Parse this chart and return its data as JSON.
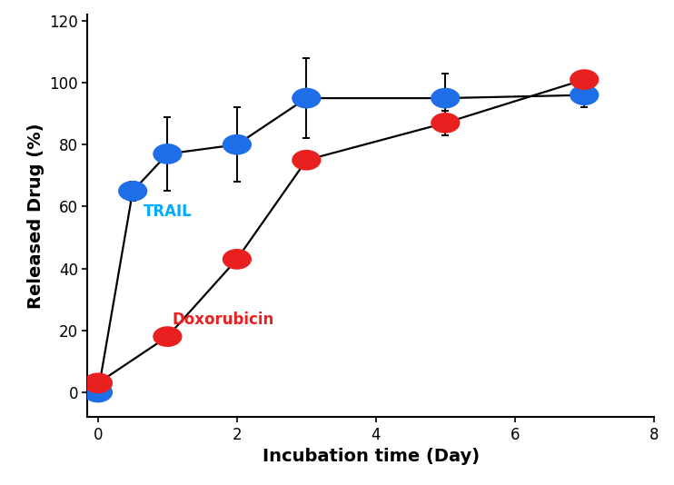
{
  "trail_x": [
    0,
    0.5,
    1,
    2,
    3,
    5,
    7
  ],
  "trail_y": [
    0,
    65,
    77,
    80,
    95,
    95,
    96
  ],
  "trail_yerr": [
    0,
    3,
    12,
    12,
    13,
    8,
    4
  ],
  "dox_x": [
    0,
    1,
    2,
    3,
    5,
    7
  ],
  "dox_y": [
    3,
    18,
    43,
    75,
    87,
    101
  ],
  "dox_yerr": [
    0,
    2,
    0,
    0,
    4,
    2
  ],
  "trail_color": "#1E6EE8",
  "dox_color": "#E82020",
  "trail_label_color": "#00AAFF",
  "dox_label_color": "#E82020",
  "trail_label": "TRAIL",
  "dox_label": "Doxorubicin",
  "xlabel": "Incubation time (Day)",
  "ylabel": "Released Drug (%)",
  "xlim": [
    -0.15,
    8
  ],
  "ylim": [
    -8,
    122
  ],
  "xticks": [
    0,
    2,
    4,
    6,
    8
  ],
  "yticks": [
    0,
    20,
    40,
    60,
    80,
    100,
    120
  ],
  "marker_size": 14,
  "linewidth": 1.6,
  "capsize": 3,
  "elinewidth": 1.4,
  "line_color": "black"
}
